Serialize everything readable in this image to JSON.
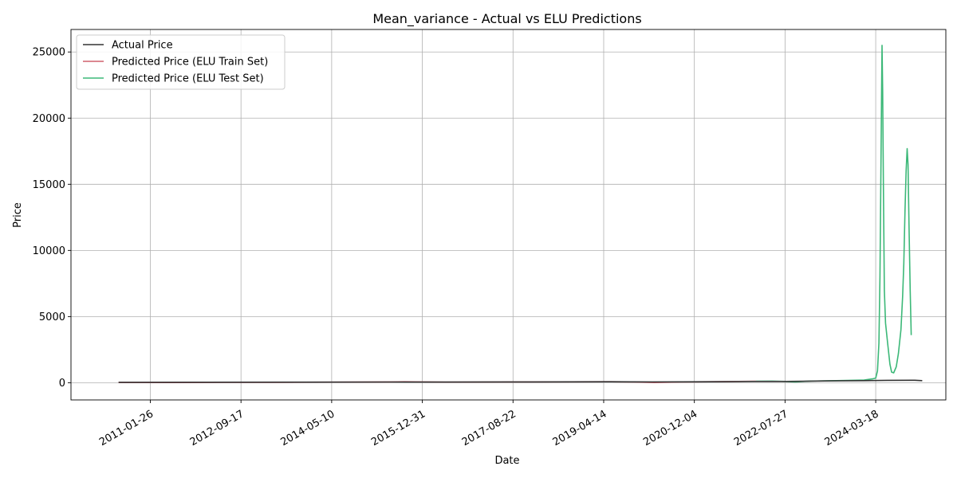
{
  "chart_data": {
    "type": "line",
    "title": "Mean_variance - Actual vs ELU Predictions",
    "xlabel": "Date",
    "ylabel": "Price",
    "x_ticks": [
      "2011-01-26",
      "2012-09-17",
      "2014-05-10",
      "2015-12-31",
      "2017-08-22",
      "2019-04-14",
      "2020-12-04",
      "2022-07-27",
      "2024-03-18"
    ],
    "y_ticks": [
      0,
      5000,
      10000,
      15000,
      20000,
      25000
    ],
    "xlim": [
      "2009-08-19",
      "2025-06-25"
    ],
    "ylim": [
      -1300,
      26700
    ],
    "grid": true,
    "legend_position": "top-left",
    "colors": {
      "actual": "#333333",
      "train": "#d1606d",
      "test": "#3cb878"
    },
    "series": [
      {
        "name": "Actual Price",
        "points": [
          [
            "2010-06-30",
            30
          ],
          [
            "2012-01-01",
            35
          ],
          [
            "2014-01-01",
            45
          ],
          [
            "2015-06-01",
            55
          ],
          [
            "2016-06-01",
            50
          ],
          [
            "2018-01-01",
            60
          ],
          [
            "2019-06-01",
            70
          ],
          [
            "2020-03-01",
            60
          ],
          [
            "2021-06-01",
            80
          ],
          [
            "2022-01-01",
            100
          ],
          [
            "2022-08-01",
            100
          ],
          [
            "2023-06-01",
            140
          ],
          [
            "2024-01-01",
            160
          ],
          [
            "2024-06-01",
            180
          ],
          [
            "2024-12-01",
            190
          ],
          [
            "2025-01-20",
            160
          ]
        ]
      },
      {
        "name": "Predicted Price (ELU Train Set)",
        "points": [
          [
            "2010-06-30",
            20
          ],
          [
            "2011-06-01",
            15
          ],
          [
            "2012-06-01",
            25
          ],
          [
            "2013-06-01",
            30
          ],
          [
            "2014-06-01",
            40
          ],
          [
            "2015-06-01",
            60
          ],
          [
            "2015-09-01",
            70
          ],
          [
            "2016-06-01",
            45
          ],
          [
            "2017-06-01",
            55
          ],
          [
            "2018-06-01",
            65
          ],
          [
            "2019-06-01",
            70
          ],
          [
            "2019-11-01",
            60
          ],
          [
            "2020-03-15",
            10
          ],
          [
            "2020-09-01",
            60
          ],
          [
            "2021-06-01",
            80
          ],
          [
            "2022-01-15",
            110
          ]
        ]
      },
      {
        "name": "Predicted Price (ELU Test Set)",
        "points": [
          [
            "2022-01-15",
            110
          ],
          [
            "2022-05-01",
            120
          ],
          [
            "2022-08-01",
            100
          ],
          [
            "2022-10-01",
            60
          ],
          [
            "2023-01-01",
            120
          ],
          [
            "2023-06-01",
            150
          ],
          [
            "2024-01-01",
            200
          ],
          [
            "2024-03-01",
            300
          ],
          [
            "2024-03-18",
            350
          ],
          [
            "2024-03-30",
            900
          ],
          [
            "2024-04-08",
            3000
          ],
          [
            "2024-04-15",
            8000
          ],
          [
            "2024-04-20",
            14000
          ],
          [
            "2024-04-25",
            21000
          ],
          [
            "2024-04-29",
            25500
          ],
          [
            "2024-05-03",
            22000
          ],
          [
            "2024-05-08",
            15000
          ],
          [
            "2024-05-14",
            7000
          ],
          [
            "2024-05-22",
            4500
          ],
          [
            "2024-06-05",
            3000
          ],
          [
            "2024-06-20",
            1400
          ],
          [
            "2024-07-01",
            800
          ],
          [
            "2024-07-15",
            750
          ],
          [
            "2024-08-01",
            1200
          ],
          [
            "2024-08-15",
            2200
          ],
          [
            "2024-09-01",
            4000
          ],
          [
            "2024-09-12",
            6500
          ],
          [
            "2024-09-20",
            9000
          ],
          [
            "2024-09-28",
            13000
          ],
          [
            "2024-10-05",
            16000
          ],
          [
            "2024-10-12",
            17700
          ],
          [
            "2024-10-18",
            16500
          ],
          [
            "2024-10-24",
            12000
          ],
          [
            "2024-11-01",
            7000
          ],
          [
            "2024-11-08",
            3600
          ]
        ]
      }
    ]
  }
}
